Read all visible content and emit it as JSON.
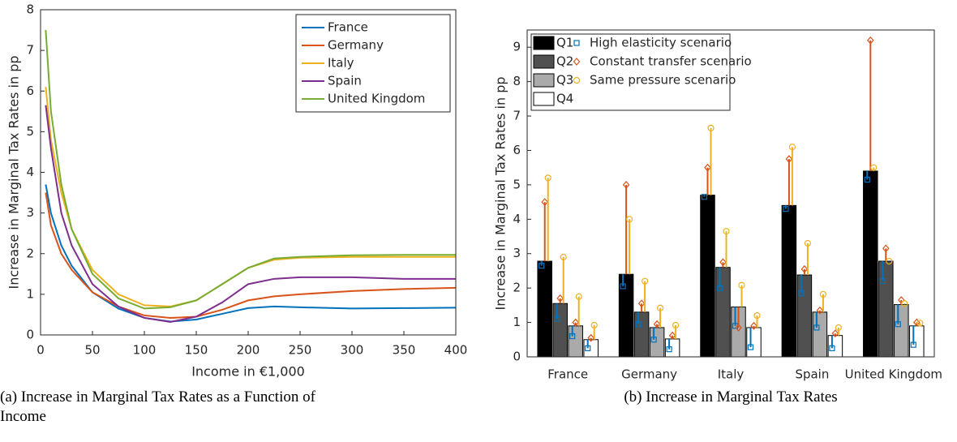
{
  "chart_data": [
    {
      "type": "line",
      "caption": "(a) Increase in Marginal Tax Rates as a Function of Income",
      "xlabel": "Income in €1,000",
      "ylabel": "Increase in Marginal Tax Rates in pp",
      "x": [
        5,
        10,
        20,
        30,
        50,
        75,
        100,
        125,
        150,
        175,
        200,
        225,
        250,
        300,
        350,
        400
      ],
      "xlim": [
        0,
        400
      ],
      "xticks": [
        0,
        50,
        100,
        150,
        200,
        250,
        300,
        350,
        400
      ],
      "ylim": [
        0,
        8
      ],
      "yticks": [
        0,
        1,
        2,
        3,
        4,
        5,
        6,
        7,
        8
      ],
      "legend": "upper right",
      "series": [
        {
          "name": "France",
          "color": "#0072BD",
          "values": [
            3.7,
            3.0,
            2.2,
            1.7,
            1.05,
            0.65,
            0.42,
            0.33,
            0.38,
            0.52,
            0.66,
            0.7,
            0.68,
            0.65,
            0.66,
            0.67
          ]
        },
        {
          "name": "Germany",
          "color": "#D95319",
          "values": [
            3.5,
            2.7,
            2.0,
            1.6,
            1.05,
            0.7,
            0.48,
            0.42,
            0.45,
            0.62,
            0.85,
            0.95,
            1.0,
            1.08,
            1.13,
            1.16
          ]
        },
        {
          "name": "Italy",
          "color": "#EDB120",
          "values": [
            6.1,
            4.8,
            3.5,
            2.6,
            1.6,
            1.0,
            0.73,
            0.7,
            0.85,
            1.25,
            1.65,
            1.85,
            1.9,
            1.92,
            1.92,
            1.92
          ]
        },
        {
          "name": "Spain",
          "color": "#7E2F8E",
          "values": [
            5.65,
            4.6,
            3.0,
            2.2,
            1.25,
            0.7,
            0.42,
            0.32,
            0.45,
            0.8,
            1.25,
            1.38,
            1.42,
            1.42,
            1.38,
            1.38
          ]
        },
        {
          "name": "United Kingdom",
          "color": "#77AC30",
          "values": [
            7.5,
            5.5,
            3.7,
            2.6,
            1.5,
            0.9,
            0.65,
            0.68,
            0.85,
            1.25,
            1.65,
            1.88,
            1.92,
            1.96,
            1.97,
            1.97
          ]
        }
      ]
    },
    {
      "type": "bar",
      "caption": "(b) Increase in Marginal Tax Rates",
      "ylabel": "Increase in Marginal Tax Rates in pp",
      "categories": [
        "France",
        "Germany",
        "Italy",
        "Spain",
        "United Kingdom"
      ],
      "ylim": [
        0,
        9.5
      ],
      "yticks": [
        0,
        1,
        2,
        3,
        4,
        5,
        6,
        7,
        8,
        9
      ],
      "legend": "upper left",
      "series": [
        {
          "name": "Q1",
          "color": "#000000",
          "values": [
            2.78,
            2.4,
            4.7,
            4.4,
            5.4
          ]
        },
        {
          "name": "Q2",
          "color": "#505050",
          "values": [
            1.55,
            1.3,
            2.6,
            2.38,
            2.78
          ]
        },
        {
          "name": "Q3",
          "color": "#aaaaaa",
          "values": [
            0.9,
            0.85,
            1.45,
            1.3,
            1.52
          ]
        },
        {
          "name": "Q4",
          "color": "#ffffff",
          "values": [
            0.5,
            0.52,
            0.85,
            0.62,
            0.9
          ]
        }
      ],
      "scenarios": [
        {
          "name": "High elasticity scenario",
          "color": "#0072BD",
          "marker": "square",
          "values": [
            [
              2.65,
              1.1,
              0.6,
              0.25
            ],
            [
              2.05,
              0.95,
              0.5,
              0.22
            ],
            [
              4.65,
              2.0,
              0.9,
              0.28
            ],
            [
              4.3,
              1.85,
              0.85,
              0.25
            ],
            [
              5.15,
              2.2,
              0.95,
              0.35
            ]
          ]
        },
        {
          "name": "Constant transfer scenario",
          "color": "#D95319",
          "marker": "diamond",
          "values": [
            [
              4.5,
              1.7,
              1.0,
              0.55
            ],
            [
              5.0,
              1.55,
              0.95,
              0.62
            ],
            [
              5.5,
              2.75,
              0.85,
              0.9
            ],
            [
              5.75,
              2.55,
              1.35,
              0.68
            ],
            [
              9.2,
              3.15,
              1.65,
              1.0
            ]
          ]
        },
        {
          "name": "Same pressure scenario",
          "color": "#EDB120",
          "marker": "circle",
          "values": [
            [
              5.2,
              2.9,
              1.75,
              0.92
            ],
            [
              4.0,
              2.2,
              1.42,
              0.92
            ],
            [
              6.65,
              3.65,
              2.08,
              1.2
            ],
            [
              6.1,
              3.3,
              1.82,
              0.85
            ],
            [
              5.5,
              2.78,
              1.55,
              0.98
            ]
          ]
        }
      ]
    }
  ]
}
